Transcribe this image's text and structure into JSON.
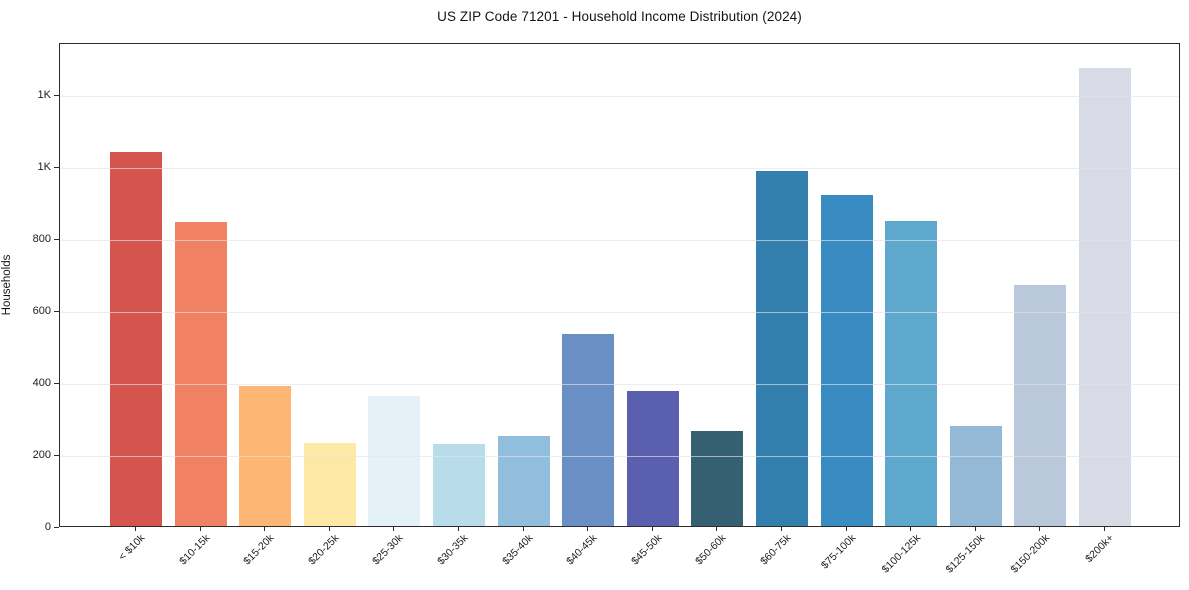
{
  "chart_data": {
    "type": "bar",
    "title": "US ZIP Code 71201 - Household Income Distribution (2024)",
    "xlabel": "",
    "ylabel": "Households",
    "categories": [
      "< $10k",
      "$10-15k",
      "$15-20k",
      "$20-25k",
      "$25-30k",
      "$30-35k",
      "$35-40k",
      "$40-45k",
      "$45-50k",
      "$50-60k",
      "$60-75k",
      "$75-100k",
      "$100-125k",
      "$125-150k",
      "$150-200k",
      "$200k+"
    ],
    "values": [
      1040,
      845,
      388,
      232,
      362,
      227,
      251,
      534,
      376,
      265,
      988,
      921,
      847,
      277,
      671,
      1274
    ],
    "bar_colors": [
      "#d6544e",
      "#f08163",
      "#fcb774",
      "#fde8a6",
      "#e4f2f7",
      "#b8dcea",
      "#92bedd",
      "#6a8fc5",
      "#5a5fae",
      "#356072",
      "#337fad",
      "#388cc1",
      "#5fa8cd",
      "#94b9d6",
      "#b9c8da",
      "#d8dae6"
    ],
    "ylim": [
      0,
      1345
    ],
    "y_ticks": {
      "values": [
        0,
        200,
        400,
        600,
        800,
        1000,
        1200
      ],
      "labels": [
        "0",
        "200",
        "400",
        "600",
        "800",
        "1K",
        "1K"
      ]
    },
    "grid": "horizontal",
    "grid_color": "#e3e3e8",
    "axis_color": "#2b2b2b",
    "legend_position": "none"
  }
}
